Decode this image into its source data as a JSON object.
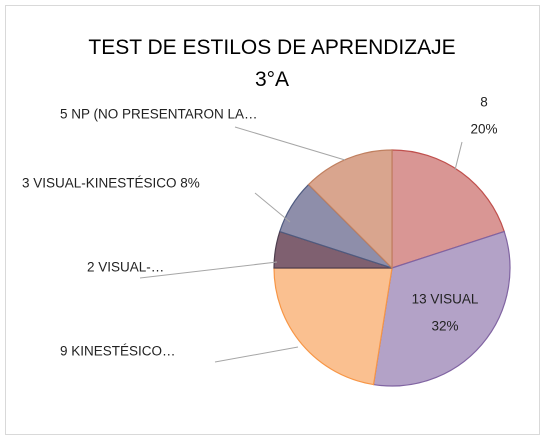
{
  "chart_data": {
    "type": "pie",
    "title": "TEST DE ESTILOS DE APRENDIZAJE 3°A",
    "values": [
      8,
      13,
      9,
      2,
      3,
      5
    ],
    "value_labels": [
      [
        "8",
        "20%"
      ],
      [
        "13 VISUAL",
        "32%"
      ],
      [
        "9 KINESTÉSICO…"
      ],
      [
        "2 VISUAL-…"
      ],
      [
        "3 VISUAL-KINESTÉSICO  8%"
      ],
      [
        "5 NP (NO PRESENTARON LA…"
      ]
    ],
    "colors": [
      "#d99694",
      "#b3a2c7",
      "#fac090",
      "#7f6070",
      "#8e8eaa",
      "#d9a58e"
    ],
    "border_colors": [
      "#c0504d",
      "#8064a2",
      "#f79646",
      "#4f3f4f",
      "#4f5b80",
      "#c08060"
    ]
  }
}
